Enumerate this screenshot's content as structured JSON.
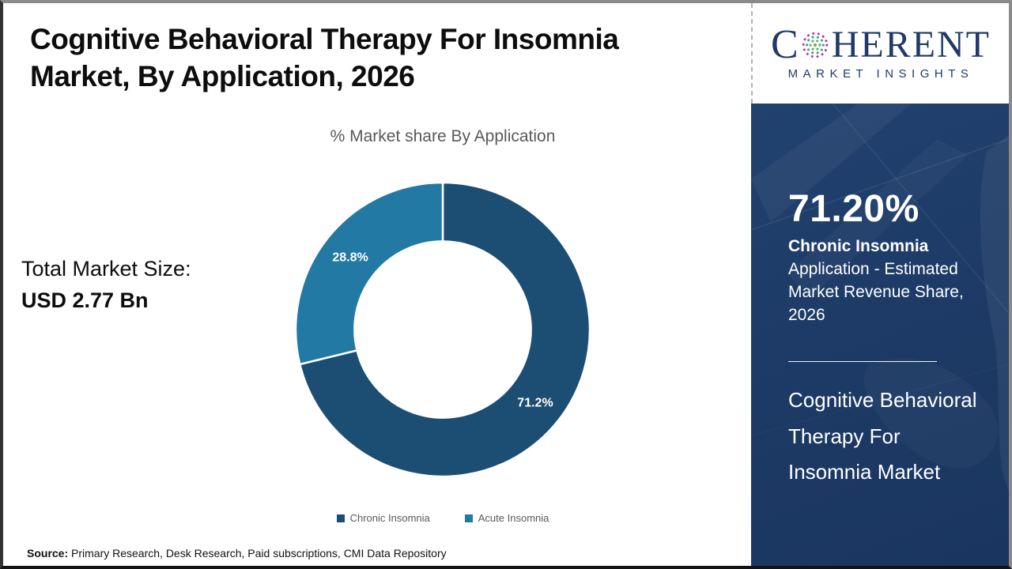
{
  "header": {
    "title": "Cognitive Behavioral Therapy For Insomnia Market, By Application, 2026"
  },
  "logo": {
    "word_start": "C",
    "word_end": "HERENT",
    "tagline": "MARKET INSIGHTS",
    "navy": "#1f3a68",
    "globe_colors": {
      "outer": "#bf2a7f",
      "middle": "#2f9db5",
      "inner": "#5cb544"
    }
  },
  "chart_data": {
    "type": "pie",
    "donut": true,
    "title": "% Market share By Application",
    "slices": [
      {
        "label": "Chronic Insomnia",
        "value": 71.2,
        "data_label": "71.2%",
        "color": "#1c4e74"
      },
      {
        "label": "Acute Insomnia",
        "value": 28.8,
        "data_label": "28.8%",
        "color": "#2279a4"
      }
    ],
    "start_angle_deg": 0,
    "direction": "clockwise",
    "outer_radius": 186,
    "inner_radius_ratio": 0.6,
    "separator_color": "#ffffff",
    "legend_position": "bottom",
    "legend_text_color": "#595959"
  },
  "market_size": {
    "label": "Total Market Size:",
    "value": "USD 2.77 Bn"
  },
  "sidebar": {
    "stat_value": "71.20%",
    "stat_name": "Chronic Insomnia",
    "stat_desc": "Application - Estimated Market Revenue Share, 2026",
    "product_title": "Cognitive Behavioral Therapy For Insomnia Market",
    "background": "#1d3b66"
  },
  "footer": {
    "source_label": "Source:",
    "source_text": " Primary Research, Desk Research, Paid subscriptions, CMI Data Repository"
  }
}
